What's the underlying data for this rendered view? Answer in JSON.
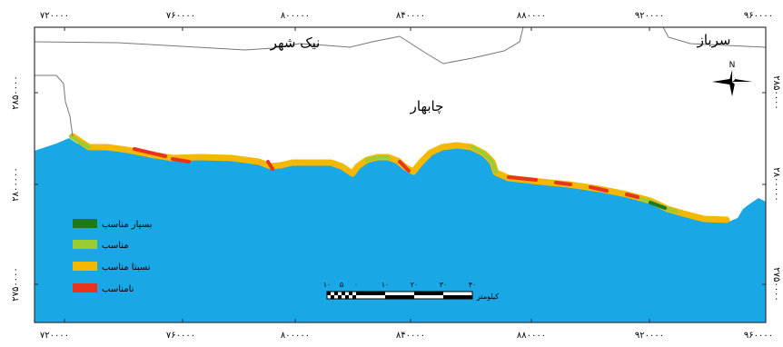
{
  "map": {
    "labels": {
      "nikshahr": "نیک شهر",
      "sarbaz": "سرباز",
      "chabahar": "چابهار"
    },
    "north_arrow_letter": "N",
    "axis": {
      "x_ticks": [
        "۷۲۰۰۰۰",
        "۷۶۰۰۰۰",
        "۸۰۰۰۰۰",
        "۸۴۰۰۰۰",
        "۸۸۰۰۰۰",
        "۹۲۰۰۰۰",
        "۹۶۰۰۰۰"
      ],
      "y_ticks": [
        "۲۸۵۰۰۰۰",
        "۲۸۰۰۰۰۰",
        "۲۷۵۰۰۰۰"
      ]
    },
    "legend": [
      {
        "label": "بسیار مناسب",
        "color": "#1e7a1e"
      },
      {
        "label": "مناسب",
        "color": "#9acd32"
      },
      {
        "label": "نسبتا مناسب",
        "color": "#f5b800"
      },
      {
        "label": "نامناسب",
        "color": "#e8341c"
      }
    ],
    "scale_bar": {
      "tick_labels": [
        "۱۰",
        "۵",
        "۰",
        "۱۰",
        "۲۰",
        "۳۰",
        "۴۰"
      ],
      "unit": "کیلومتر"
    },
    "colors": {
      "sea": "#1aa7e6",
      "land": "#ffffff",
      "border": "#777777",
      "frame": "#333333"
    }
  }
}
